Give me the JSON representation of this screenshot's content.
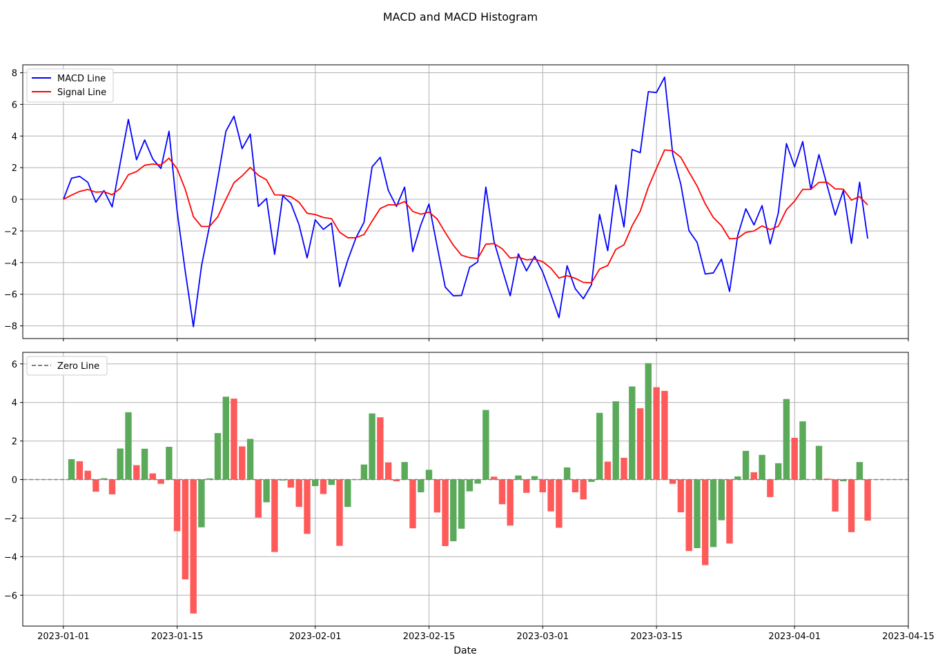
{
  "title": "MACD and MACD Histogram",
  "xlabel": "Date",
  "colors": {
    "macd": "#0000ff",
    "signal": "#ff0000",
    "pos": "#5aaa5a",
    "neg": "#ff5a5a",
    "zero": "#808080",
    "grid": "#b0b0b0"
  },
  "chart_data": [
    {
      "type": "line",
      "x_start": "2023-01-01",
      "x_end": "2023-04-10",
      "xlim": [
        "2022-12-27",
        "2023-04-15"
      ],
      "ylim": [
        -8.8,
        8.5
      ],
      "yticks": [
        -8,
        -6,
        -4,
        -2,
        0,
        2,
        4,
        6,
        8
      ],
      "xticks": [
        "2023-01-01",
        "2023-01-15",
        "2023-02-01",
        "2023-02-15",
        "2023-03-01",
        "2023-03-15",
        "2023-04-01",
        "2023-04-15"
      ],
      "grid": true,
      "legend": "upper left",
      "series": [
        {
          "name": "MACD Line",
          "color": "#0000ff",
          "values": [
            0.0,
            1.33,
            1.45,
            1.08,
            -0.18,
            0.55,
            -0.48,
            2.3,
            5.05,
            2.5,
            3.75,
            2.55,
            1.95,
            4.3,
            -0.75,
            -4.55,
            -8.05,
            -4.2,
            -1.65,
            1.3,
            4.3,
            5.25,
            3.2,
            4.12,
            -0.45,
            0.05,
            -3.48,
            0.22,
            -0.25,
            -1.6,
            -3.7,
            -1.3,
            -1.9,
            -1.5,
            -5.52,
            -3.85,
            -2.45,
            -1.45,
            2.05,
            2.65,
            0.55,
            -0.45,
            0.77,
            -3.3,
            -1.6,
            -0.3,
            -2.95,
            -5.55,
            -6.1,
            -6.08,
            -4.3,
            -3.95,
            0.77,
            -2.65,
            -4.4,
            -6.1,
            -3.45,
            -4.52,
            -3.6,
            -4.6,
            -6.0,
            -7.48,
            -4.2,
            -5.65,
            -6.28,
            -5.4,
            -0.95,
            -3.25,
            0.9,
            -1.75,
            3.15,
            2.95,
            6.8,
            6.75,
            7.72,
            2.85,
            0.95,
            -1.98,
            -2.72,
            -4.72,
            -4.65,
            -3.78,
            -5.82,
            -2.3,
            -0.6,
            -1.62,
            -0.4,
            -2.82,
            -0.85,
            3.52,
            2.05,
            3.65,
            0.62,
            2.82,
            0.88,
            -1.0,
            0.55,
            -2.78,
            1.08,
            -2.48
          ]
        },
        {
          "name": "Signal Line",
          "color": "#ff0000",
          "values": [
            0.0,
            0.27,
            0.5,
            0.62,
            0.45,
            0.48,
            0.29,
            0.69,
            1.56,
            1.75,
            2.15,
            2.23,
            2.17,
            2.6,
            1.93,
            0.63,
            -1.1,
            -1.72,
            -1.71,
            -1.11,
            0.0,
            1.05,
            1.48,
            2.01,
            1.52,
            1.23,
            0.28,
            0.27,
            0.17,
            -0.18,
            -0.88,
            -0.96,
            -1.15,
            -1.22,
            -2.08,
            -2.43,
            -2.43,
            -2.23,
            -1.38,
            -0.58,
            -0.34,
            -0.36,
            -0.14,
            -0.77,
            -0.94,
            -0.81,
            -1.24,
            -2.1,
            -2.9,
            -3.53,
            -3.69,
            -3.74,
            -2.84,
            -2.8,
            -3.12,
            -3.71,
            -3.66,
            -3.83,
            -3.78,
            -3.94,
            -4.35,
            -4.98,
            -4.83,
            -4.99,
            -5.25,
            -5.28,
            -4.41,
            -4.18,
            -3.16,
            -2.88,
            -1.68,
            -0.75,
            0.76,
            1.96,
            3.12,
            3.07,
            2.65,
            1.73,
            0.84,
            -0.28,
            -1.15,
            -1.67,
            -2.5,
            -2.46,
            -2.09,
            -2.0,
            -1.68,
            -1.91,
            -1.7,
            -0.66,
            -0.12,
            0.63,
            0.63,
            1.07,
            1.08,
            0.66,
            0.64,
            -0.05,
            0.17,
            -0.35
          ]
        }
      ]
    },
    {
      "type": "bar",
      "x_start": "2023-01-01",
      "x_end": "2023-04-10",
      "xlim": [
        "2022-12-27",
        "2023-04-15"
      ],
      "ylim": [
        -7.6,
        6.6
      ],
      "yticks": [
        -6,
        -4,
        -2,
        0,
        2,
        4,
        6
      ],
      "xticks": [
        "2023-01-01",
        "2023-01-15",
        "2023-02-01",
        "2023-02-15",
        "2023-03-01",
        "2023-03-15",
        "2023-04-01",
        "2023-04-15"
      ],
      "grid": true,
      "legend": "upper left",
      "zero_line_label": "Zero Line",
      "values": [
        0.0,
        1.06,
        0.95,
        0.46,
        -0.63,
        0.07,
        -0.77,
        1.61,
        3.49,
        0.75,
        1.6,
        0.32,
        -0.22,
        1.7,
        -2.68,
        -5.18,
        -6.95,
        -2.48,
        0.06,
        2.41,
        4.3,
        4.2,
        1.72,
        2.11,
        -1.97,
        -1.18,
        -3.76,
        -0.05,
        -0.42,
        -1.42,
        -2.82,
        -0.34,
        -0.75,
        -0.28,
        -3.44,
        -1.42,
        -0.02,
        0.78,
        3.43,
        3.23,
        0.89,
        -0.09,
        0.91,
        -2.53,
        -0.66,
        0.51,
        -1.71,
        -3.45,
        -3.2,
        -2.55,
        -0.61,
        -0.21,
        3.61,
        0.15,
        -1.28,
        -2.39,
        0.21,
        -0.69,
        0.18,
        -0.66,
        -1.65,
        -2.5,
        0.63,
        -0.66,
        -1.03,
        -0.12,
        3.46,
        0.93,
        4.06,
        1.13,
        4.83,
        3.7,
        6.04,
        4.79,
        4.6,
        -0.22,
        -1.7,
        -3.71,
        -3.56,
        -4.44,
        -3.5,
        -2.11,
        -3.32,
        0.16,
        1.49,
        0.38,
        1.28,
        -0.91,
        0.85,
        4.18,
        2.17,
        3.02,
        -0.01,
        1.75,
        0.05,
        -1.66,
        -0.09,
        -2.73,
        0.91,
        -2.13
      ],
      "colors": [
        "pos",
        "pos",
        "neg",
        "neg",
        "neg",
        "pos",
        "neg",
        "pos",
        "pos",
        "neg",
        "pos",
        "neg",
        "neg",
        "pos",
        "neg",
        "neg",
        "neg",
        "pos",
        "pos",
        "pos",
        "pos",
        "neg",
        "neg",
        "pos",
        "neg",
        "pos",
        "neg",
        "pos",
        "neg",
        "neg",
        "neg",
        "pos",
        "neg",
        "pos",
        "neg",
        "pos",
        "pos",
        "pos",
        "pos",
        "neg",
        "neg",
        "neg",
        "pos",
        "neg",
        "pos",
        "pos",
        "neg",
        "neg",
        "pos",
        "pos",
        "pos",
        "pos",
        "pos",
        "neg",
        "neg",
        "neg",
        "pos",
        "neg",
        "pos",
        "neg",
        "neg",
        "neg",
        "pos",
        "neg",
        "neg",
        "pos",
        "pos",
        "neg",
        "pos",
        "neg",
        "pos",
        "neg",
        "pos",
        "neg",
        "neg",
        "neg",
        "neg",
        "neg",
        "pos",
        "neg",
        "pos",
        "pos",
        "neg",
        "pos",
        "pos",
        "neg",
        "pos",
        "neg",
        "pos",
        "pos",
        "neg",
        "pos",
        "neg",
        "pos",
        "neg",
        "neg",
        "pos",
        "neg",
        "pos",
        "neg"
      ]
    }
  ]
}
